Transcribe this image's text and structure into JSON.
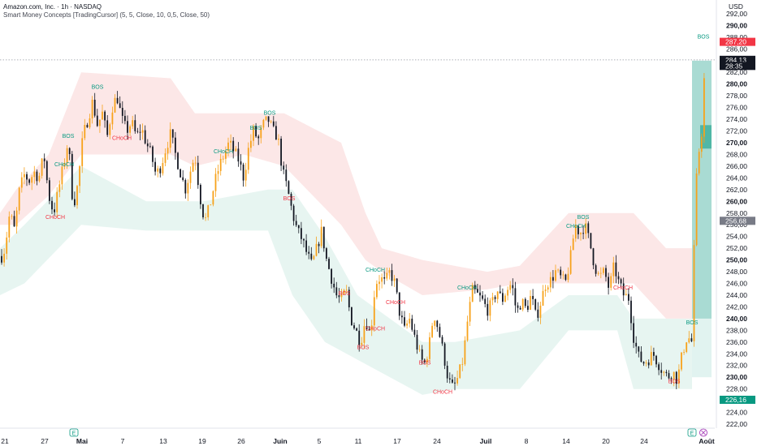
{
  "header": {
    "title": "Amazon.com, Inc. · 1h · NASDAQ",
    "subtitle": "Smart Money Concepts [TradingCursor] (5, 5, Close, 10, 0,5, Close, 50)"
  },
  "currency": "USD",
  "colors": {
    "up": "#f7a21b",
    "down": "#131722",
    "bull_label": "#089981",
    "bear_label": "#f23645",
    "premium_zone": "#fbe3e3",
    "discount_zone": "#e3f3ef",
    "current_price": "#131722",
    "red_tag": "#f23645",
    "green_tag": "#089981",
    "grey_tag": "#787b86"
  },
  "chart_data": {
    "type": "candlestick",
    "ylim": [
      220,
      293
    ],
    "y_ticks": [
      "222,00",
      "224,00",
      "226,00",
      "228,00",
      "230,00",
      "232,00",
      "234,00",
      "236,00",
      "238,00",
      "240,00",
      "242,00",
      "244,00",
      "246,00",
      "248,00",
      "250,00",
      "252,00",
      "254,00",
      "256,00",
      "258,00",
      "260,00",
      "262,00",
      "264,00",
      "266,00",
      "268,00",
      "270,00",
      "272,00",
      "274,00",
      "276,00",
      "278,00",
      "280,00",
      "282,00",
      "284,00",
      "286,00",
      "288,00",
      "290,00",
      "292,00"
    ],
    "y_bold_ticks": [
      "230,00",
      "240,00",
      "250,00",
      "260,00",
      "270,00",
      "280,00",
      "290,00"
    ],
    "x_ticks": [
      "21",
      "27",
      "Mai",
      "7",
      "13",
      "19",
      "26",
      "Juin",
      "5",
      "11",
      "17",
      "24",
      "Juil",
      "8",
      "14",
      "20",
      "24",
      "Août"
    ],
    "x_bold_ticks": [
      "Mai",
      "Juin",
      "Juil",
      "Août"
    ],
    "earnings_marker": "E",
    "price_tags": [
      {
        "label": "287,20",
        "value": 287.2,
        "style": "red"
      },
      {
        "label": "284,13",
        "value": 284.13,
        "style": "current"
      },
      {
        "label": "28:35",
        "value": 283.1,
        "style": "current"
      },
      {
        "label": "256,68",
        "value": 256.68,
        "style": "grey"
      },
      {
        "label": "226,16",
        "value": 226.16,
        "style": "green"
      }
    ],
    "current_price": 284.13,
    "path": [
      [
        0,
        250.0
      ],
      [
        6,
        252.0
      ],
      [
        12,
        258.0
      ],
      [
        18,
        255.0
      ],
      [
        24,
        262.0
      ],
      [
        30,
        264.5
      ],
      [
        36,
        263.5
      ],
      [
        42,
        265.0
      ],
      [
        48,
        264.0
      ],
      [
        54,
        268.0
      ],
      [
        60,
        261.0
      ],
      [
        66,
        258.0
      ],
      [
        72,
        262.0
      ],
      [
        78,
        266.0
      ],
      [
        84,
        270.5
      ],
      [
        90,
        259.0
      ],
      [
        96,
        263.0
      ],
      [
        102,
        271.0
      ],
      [
        108,
        274.0
      ],
      [
        114,
        277.0
      ],
      [
        120,
        273.0
      ],
      [
        126,
        275.0
      ],
      [
        132,
        271.0
      ],
      [
        138,
        276.0
      ],
      [
        144,
        278.0
      ],
      [
        150,
        274.0
      ],
      [
        156,
        272.0
      ],
      [
        162,
        273.5
      ],
      [
        168,
        271.0
      ],
      [
        174,
        272.5
      ],
      [
        180,
        270.0
      ],
      [
        186,
        268.0
      ],
      [
        192,
        264.5
      ],
      [
        198,
        266.0
      ],
      [
        204,
        269.0
      ],
      [
        210,
        271.5
      ],
      [
        216,
        268.0
      ],
      [
        222,
        265.0
      ],
      [
        228,
        262.0
      ],
      [
        234,
        265.0
      ],
      [
        240,
        268.0
      ],
      [
        246,
        261.0
      ],
      [
        252,
        256.5
      ],
      [
        258,
        259.0
      ],
      [
        264,
        263.0
      ],
      [
        270,
        266.0
      ],
      [
        276,
        268.0
      ],
      [
        282,
        270.0
      ],
      [
        288,
        268.5
      ],
      [
        294,
        267.0
      ],
      [
        300,
        264.0
      ],
      [
        306,
        269.0
      ],
      [
        312,
        272.0
      ],
      [
        318,
        270.5
      ],
      [
        324,
        273.0
      ],
      [
        330,
        274.0
      ],
      [
        336,
        272.0
      ],
      [
        342,
        271.0
      ],
      [
        348,
        265.0
      ],
      [
        354,
        262.0
      ],
      [
        360,
        258.0
      ],
      [
        366,
        255.0
      ],
      [
        372,
        253.5
      ],
      [
        378,
        251.0
      ],
      [
        384,
        249.0
      ],
      [
        390,
        252.0
      ],
      [
        396,
        255.0
      ],
      [
        402,
        250.0
      ],
      [
        408,
        247.0
      ],
      [
        414,
        244.0
      ],
      [
        420,
        243.0
      ],
      [
        426,
        245.0
      ],
      [
        432,
        240.0
      ],
      [
        438,
        238.0
      ],
      [
        444,
        236.0
      ],
      [
        450,
        240.0
      ],
      [
        456,
        237.0
      ],
      [
        462,
        246.0
      ],
      [
        468,
        247.0
      ],
      [
        474,
        246.0
      ],
      [
        480,
        248.0
      ],
      [
        486,
        246.0
      ],
      [
        492,
        241.0
      ],
      [
        498,
        238.0
      ],
      [
        504,
        240.0
      ],
      [
        510,
        237.0
      ],
      [
        516,
        234.0
      ],
      [
        522,
        232.0
      ],
      [
        528,
        235.0
      ],
      [
        534,
        241.0
      ],
      [
        540,
        238.0
      ],
      [
        546,
        234.0
      ],
      [
        552,
        229.5
      ],
      [
        558,
        228.0
      ],
      [
        564,
        230.0
      ],
      [
        570,
        233.0
      ],
      [
        576,
        240.0
      ],
      [
        582,
        245.0
      ],
      [
        588,
        244.0
      ],
      [
        594,
        243.0
      ],
      [
        600,
        241.5
      ],
      [
        606,
        242.5
      ],
      [
        612,
        245.0
      ],
      [
        618,
        243.0
      ],
      [
        624,
        245.0
      ],
      [
        630,
        246.0
      ],
      [
        636,
        241.0
      ],
      [
        642,
        243.0
      ],
      [
        648,
        241.5
      ],
      [
        654,
        244.0
      ],
      [
        660,
        240.0
      ],
      [
        666,
        243.0
      ],
      [
        672,
        246.0
      ],
      [
        678,
        246.5
      ],
      [
        684,
        248.0
      ],
      [
        690,
        247.0
      ],
      [
        696,
        246.0
      ],
      [
        702,
        250.0
      ],
      [
        708,
        256.0
      ],
      [
        714,
        254.5
      ],
      [
        720,
        256.0
      ],
      [
        726,
        253.0
      ],
      [
        732,
        249.0
      ],
      [
        738,
        247.0
      ],
      [
        744,
        248.0
      ],
      [
        750,
        245.0
      ],
      [
        756,
        249.0
      ],
      [
        762,
        246.0
      ],
      [
        768,
        244.0
      ],
      [
        774,
        243.5
      ],
      [
        780,
        237.0
      ],
      [
        786,
        233.5
      ],
      [
        792,
        232.5
      ],
      [
        798,
        233.0
      ],
      [
        804,
        234.0
      ],
      [
        810,
        232.5
      ],
      [
        816,
        231.0
      ],
      [
        822,
        230.0
      ],
      [
        828,
        231.0
      ],
      [
        834,
        229.5
      ],
      [
        840,
        234.0
      ],
      [
        846,
        237.0
      ],
      [
        852,
        236.0
      ],
      [
        856,
        261.0
      ],
      [
        860,
        268.0
      ],
      [
        864,
        272.0
      ],
      [
        868,
        284.0
      ]
    ],
    "premium_zone": [
      [
        0,
        256,
        258
      ],
      [
        20,
        256,
        262
      ],
      [
        60,
        261,
        268
      ],
      [
        100,
        268,
        282
      ],
      [
        210,
        268,
        281
      ],
      [
        240,
        266,
        275
      ],
      [
        300,
        268,
        275
      ],
      [
        350,
        266,
        275
      ],
      [
        420,
        256,
        270
      ],
      [
        450,
        250,
        258
      ],
      [
        470,
        248,
        252
      ],
      [
        520,
        244,
        250
      ],
      [
        600,
        245,
        248
      ],
      [
        640,
        246,
        249
      ],
      [
        700,
        246,
        258
      ],
      [
        780,
        246,
        258
      ],
      [
        820,
        240,
        252
      ],
      [
        852,
        240,
        252
      ]
    ],
    "discount_zone": [
      [
        0,
        244,
        252
      ],
      [
        30,
        246,
        256
      ],
      [
        100,
        256,
        266
      ],
      [
        180,
        255,
        260
      ],
      [
        250,
        255,
        260
      ],
      [
        330,
        255,
        262
      ],
      [
        360,
        244,
        262
      ],
      [
        400,
        236,
        254
      ],
      [
        440,
        233,
        244
      ],
      [
        520,
        227,
        236
      ],
      [
        560,
        228,
        236
      ],
      [
        640,
        228,
        238
      ],
      [
        700,
        238,
        244
      ],
      [
        760,
        238,
        244
      ],
      [
        780,
        228,
        240
      ],
      [
        852,
        228,
        240
      ]
    ],
    "annotations": [
      {
        "text": "CHoCH",
        "x": 79,
        "v": 266.0,
        "type": "bull"
      },
      {
        "text": "CHoCH",
        "x": 68,
        "v": 257.0,
        "type": "bear"
      },
      {
        "text": "CHoCH",
        "x": 150,
        "v": 270.5,
        "type": "bear"
      },
      {
        "text": "CHoCH",
        "x": 275,
        "v": 268.2,
        "type": "bull"
      },
      {
        "text": "CHoCH",
        "x": 462,
        "v": 248.0,
        "type": "bull"
      },
      {
        "text": "CHoCH",
        "x": 575,
        "v": 245.0,
        "type": "bull"
      },
      {
        "text": "CHoCH",
        "x": 487,
        "v": 242.5,
        "type": "bear"
      },
      {
        "text": "CHoCH",
        "x": 462,
        "v": 238.0,
        "type": "bear"
      },
      {
        "text": "CHoCH",
        "x": 545,
        "v": 227.2,
        "type": "bear"
      },
      {
        "text": "CHoCH",
        "x": 709,
        "v": 255.5,
        "type": "bull"
      },
      {
        "text": "CHoCH",
        "x": 767,
        "v": 245.0,
        "type": "bear"
      },
      {
        "text": "BOS",
        "x": 84,
        "v": 270.8,
        "type": "bull"
      },
      {
        "text": "BOS",
        "x": 120,
        "v": 279.2,
        "type": "bull"
      },
      {
        "text": "BOS",
        "x": 315,
        "v": 272.2,
        "type": "bull"
      },
      {
        "text": "BOS",
        "x": 332,
        "v": 274.8,
        "type": "bull"
      },
      {
        "text": "BOS",
        "x": 356,
        "v": 260.2,
        "type": "bear"
      },
      {
        "text": "BOS",
        "x": 424,
        "v": 244.0,
        "type": "bear"
      },
      {
        "text": "BOS",
        "x": 447,
        "v": 234.8,
        "type": "bear"
      },
      {
        "text": "BOS",
        "x": 523,
        "v": 232.2,
        "type": "bear"
      },
      {
        "text": "BOS",
        "x": 718,
        "v": 257.0,
        "type": "bull"
      },
      {
        "text": "BOS",
        "x": 830,
        "v": 229.0,
        "type": "bear"
      },
      {
        "text": "BOS",
        "x": 852,
        "v": 239.0,
        "type": "bull"
      },
      {
        "text": "BOS",
        "x": 866,
        "v": 287.8,
        "type": "bull"
      }
    ]
  }
}
